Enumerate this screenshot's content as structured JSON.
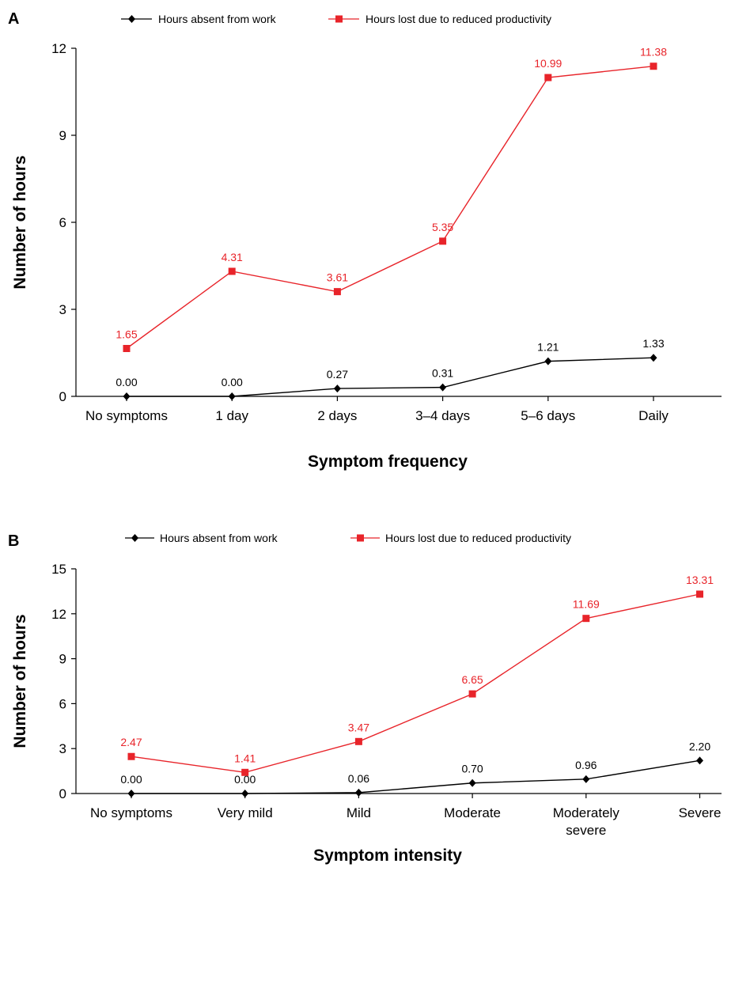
{
  "chart_data": [
    {
      "type": "line",
      "panel": "A",
      "xlabel": "Symptom frequency",
      "ylabel": "Number of hours",
      "ylim": [
        0,
        12
      ],
      "yticks": [
        0,
        3,
        6,
        9,
        12
      ],
      "categories": [
        [
          "No symptoms"
        ],
        [
          "1 day"
        ],
        [
          "2 days"
        ],
        [
          "3–4 days"
        ],
        [
          "5–6 days"
        ],
        [
          "Daily"
        ]
      ],
      "legend_position": "top",
      "grid": false,
      "series": [
        {
          "name": "Hours absent from work",
          "color": "#000000",
          "marker": "diamond",
          "values": [
            0.0,
            0.0,
            0.27,
            0.31,
            1.21,
            1.33
          ],
          "labels": [
            "0.00",
            "0.00",
            "0.27",
            "0.31",
            "1.21",
            "1.33"
          ]
        },
        {
          "name": "Hours lost due to reduced productivity",
          "color": "#e8242a",
          "marker": "square",
          "values": [
            1.65,
            4.31,
            3.61,
            5.35,
            10.99,
            11.38
          ],
          "labels": [
            "1.65",
            "4.31",
            "3.61",
            "5.35",
            "10.99",
            "11.38"
          ]
        }
      ]
    },
    {
      "type": "line",
      "panel": "B",
      "xlabel": "Symptom intensity",
      "ylabel": "Number of hours",
      "ylim": [
        0,
        15
      ],
      "yticks": [
        0,
        3,
        6,
        9,
        12,
        15
      ],
      "categories": [
        [
          "No symptoms"
        ],
        [
          "Very mild"
        ],
        [
          "Mild"
        ],
        [
          "Moderate"
        ],
        [
          "Moderately",
          "severe"
        ],
        [
          "Severe"
        ]
      ],
      "legend_position": "top",
      "grid": false,
      "series": [
        {
          "name": "Hours absent from work",
          "color": "#000000",
          "marker": "diamond",
          "values": [
            0.0,
            0.0,
            0.06,
            0.7,
            0.96,
            2.2
          ],
          "labels": [
            "0.00",
            "0.00",
            "0.06",
            "0.70",
            "0.96",
            "2.20"
          ]
        },
        {
          "name": "Hours lost due to reduced productivity",
          "color": "#e8242a",
          "marker": "square",
          "values": [
            2.47,
            1.41,
            3.47,
            6.65,
            11.69,
            13.31
          ],
          "labels": [
            "2.47",
            "1.41",
            "3.47",
            "6.65",
            "11.69",
            "13.31"
          ]
        }
      ]
    }
  ]
}
